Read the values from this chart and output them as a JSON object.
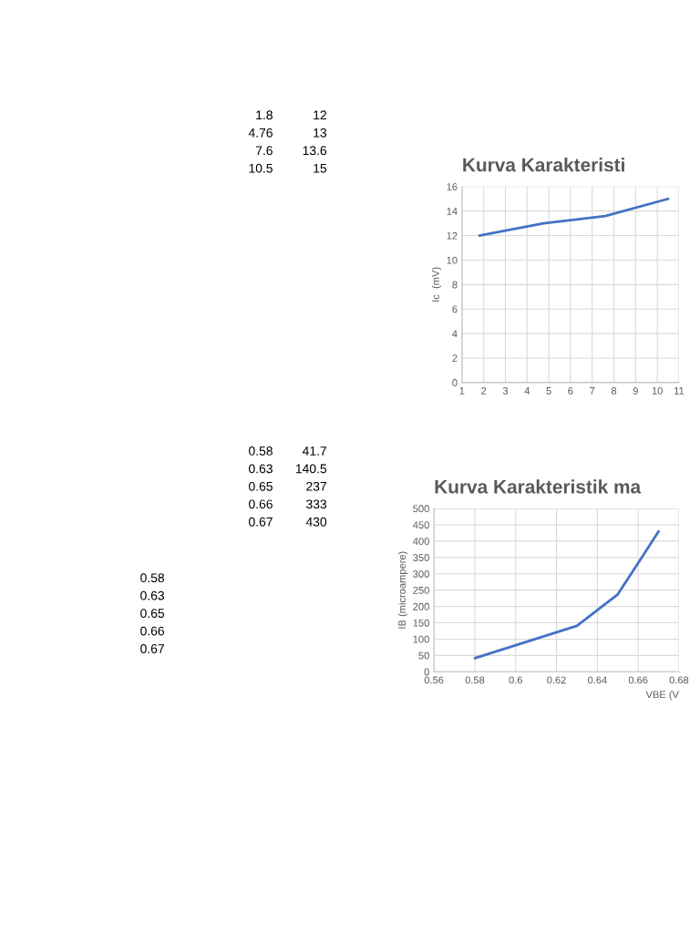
{
  "chart_data": [
    {
      "type": "line",
      "title": "Kurva Karakteristi",
      "ylabel": "Ic  (mV)",
      "x": [
        1.8,
        4.76,
        7.6,
        10.5
      ],
      "series": [
        {
          "color": "#4472c4",
          "values": [
            12,
            13,
            13.6,
            15
          ]
        }
      ],
      "xlim": [
        1,
        11
      ],
      "xticks": [
        1,
        2,
        3,
        4,
        5,
        6,
        7,
        8,
        9,
        10,
        11
      ],
      "ylim": [
        0,
        16
      ],
      "yticks": [
        0,
        2,
        4,
        6,
        8,
        10,
        12,
        14,
        16
      ],
      "grid": true,
      "annotations": [
        "1.8",
        "12",
        "4.76",
        "13",
        "7.6",
        "13.6",
        "10.5",
        "15"
      ]
    },
    {
      "type": "line",
      "title": "Kurva Karakteristik ma",
      "ylabel": "IB (microampere)",
      "xlabel": "VBE (V",
      "x": [
        0.58,
        0.63,
        0.65,
        0.66,
        0.67
      ],
      "series": [
        {
          "color": "#4472c4",
          "values": [
            41.7,
            140.5,
            237,
            333,
            430
          ]
        }
      ],
      "xlim": [
        0.56,
        0.68
      ],
      "xticks": [
        0.56,
        0.58,
        0.6,
        0.62,
        0.64,
        0.66,
        0.68
      ],
      "ylim": [
        0,
        500
      ],
      "yticks": [
        0,
        50,
        100,
        150,
        200,
        250,
        300,
        350,
        400,
        450,
        500
      ],
      "grid": true,
      "annotations": [
        "0.58",
        "41.7",
        "0.63",
        "140.5",
        "0.65",
        "237",
        "0.66",
        "333",
        "0.67",
        "430",
        "0.58",
        "0.63",
        "0.65",
        "0.66",
        "0.67"
      ]
    }
  ]
}
